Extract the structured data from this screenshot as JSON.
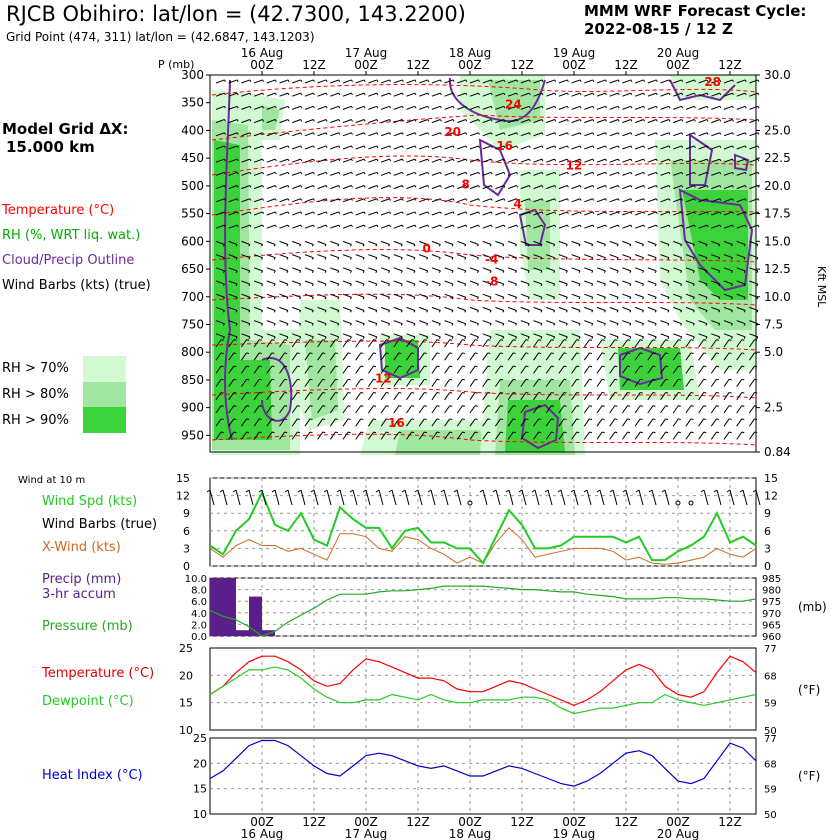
{
  "header": {
    "title": "RJCB Obihiro:  lat/lon = (42.7300, 143.2200)",
    "grid_point": "Grid Point (474, 311) lat/lon = (42.6847, 143.1203)",
    "cycle_title": "MMM WRF Forecast Cycle:",
    "cycle_value": "2022-08-15 / 12  Z",
    "model_grid_label": "Model Grid ΔX:",
    "model_grid_value": "15.000 km"
  },
  "legend": {
    "temperature": "Temperature (°C)",
    "rh": "RH (%, WRT liq. wat.)",
    "cloud": "Cloud/Precip Outline",
    "wind_barbs": "Wind Barbs (kts) (true)",
    "rh_levels": [
      "RH > 70%",
      "RH > 80%",
      "RH > 90%"
    ],
    "rh_colors": [
      "#d2fad2",
      "#a0e6a0",
      "#3cd23c"
    ]
  },
  "time_axis": {
    "hour_labels": [
      "00Z",
      "12Z",
      "00Z",
      "12Z",
      "00Z",
      "12Z",
      "00Z",
      "12Z",
      "00Z",
      "12Z"
    ],
    "hour_values": [
      12,
      24,
      36,
      48,
      60,
      72,
      84,
      96,
      108,
      120
    ],
    "day_labels": [
      "16 Aug",
      "17 Aug",
      "18 Aug",
      "19 Aug",
      "20 Aug"
    ],
    "day_values": [
      12,
      36,
      60,
      84,
      108
    ]
  },
  "colors": {
    "temperature": "#ff0000",
    "rh": "#00c000",
    "cloud": "#6a2a9a",
    "precip": "#5a1f8a",
    "wind_spd": "#22cc22",
    "x_wind": "#d2691e",
    "pressure": "#22aa22",
    "dewpoint": "#22cc22",
    "heat_index": "#0000cc"
  },
  "chart_data": [
    {
      "type": "heatmap",
      "name": "cross-section",
      "y_title": "P (mb)",
      "y_ticks": [
        300,
        350,
        400,
        450,
        500,
        550,
        600,
        650,
        700,
        750,
        800,
        850,
        900,
        950
      ],
      "right_ticks": [
        "30.0",
        "25.0",
        "22.5",
        "20.0",
        "17.5",
        "15.0",
        "12.5",
        "10.0",
        "7.5",
        "5.0",
        "2.5",
        "0.84"
      ],
      "right_tick_pressures": [
        300,
        400,
        450,
        500,
        550,
        600,
        650,
        700,
        750,
        800,
        900,
        980
      ],
      "right_label": "Kft MSL",
      "temp_labels": [
        {
          "text": "28",
          "x": 116,
          "p": 320
        },
        {
          "text": "24",
          "x": 70,
          "p": 360
        },
        {
          "text": "20",
          "x": 56,
          "p": 410
        },
        {
          "text": "16",
          "x": 68,
          "p": 435
        },
        {
          "text": "12",
          "x": 84,
          "p": 470
        },
        {
          "text": "8",
          "x": 59,
          "p": 505
        },
        {
          "text": "4",
          "x": 71,
          "p": 540
        },
        {
          "text": "0",
          "x": 50,
          "p": 620
        },
        {
          "text": "-4",
          "x": 65,
          "p": 640
        },
        {
          "text": "-8",
          "x": 65,
          "p": 680
        },
        {
          "text": "12",
          "x": 40,
          "p": 855
        },
        {
          "text": "16",
          "x": 43,
          "p": 935
        }
      ]
    },
    {
      "type": "line",
      "name": "wind-10m",
      "title": "Wind at 10 m",
      "ylim": [
        0,
        15
      ],
      "y_ticks": [
        0,
        3,
        6,
        9,
        12,
        15
      ],
      "series_labels": [
        "Wind Spd (kts)",
        "Wind Barbs (true)",
        "X-Wind (kts)"
      ],
      "x": [
        0,
        3,
        6,
        9,
        12,
        15,
        18,
        21,
        24,
        27,
        30,
        33,
        36,
        39,
        42,
        45,
        48,
        51,
        54,
        57,
        60,
        63,
        66,
        69,
        72,
        75,
        78,
        81,
        84,
        87,
        90,
        93,
        96,
        99,
        102,
        105,
        108,
        111,
        114,
        117,
        120,
        123,
        126
      ],
      "series": [
        {
          "name": "Wind Spd (kts)",
          "values": [
            3.5,
            2,
            6,
            8,
            12.5,
            7,
            6,
            9,
            4.5,
            3.5,
            10,
            8,
            6.5,
            6.5,
            3,
            6,
            6.5,
            4,
            4,
            3,
            3,
            0.5,
            5,
            9.5,
            7,
            3,
            3,
            3.5,
            5,
            5,
            5,
            5,
            4,
            5,
            1,
            1,
            2.5,
            3.5,
            5,
            9,
            4,
            5,
            3.5
          ]
        },
        {
          "name": "X-Wind (kts)",
          "values": [
            3,
            1.5,
            3.5,
            4.5,
            3.5,
            3.5,
            2.5,
            3,
            2,
            1,
            5.5,
            5.5,
            5,
            3,
            2.5,
            5,
            4.5,
            3,
            2,
            0.5,
            1.5,
            0.5,
            4,
            6.5,
            4.5,
            1.5,
            2,
            2.5,
            3,
            3,
            3,
            2.5,
            1,
            1.5,
            0.5,
            0.3,
            0.5,
            1,
            1.5,
            3,
            2,
            1.5,
            3
          ]
        }
      ]
    },
    {
      "type": "bar",
      "name": "precip-pressure",
      "series_labels": [
        "Precip (mm)",
        "3-hr accum",
        "Pressure (mb)"
      ],
      "left_ylim": [
        0,
        10
      ],
      "left_ticks": [
        "0.0",
        "2.0",
        "4.0",
        "6.0",
        "8.0",
        "10.0"
      ],
      "right_ylim": [
        960,
        985
      ],
      "right_ticks": [
        960,
        965,
        970,
        975,
        980,
        985
      ],
      "right_unit": "(mb)",
      "precip": {
        "x": [
          1.5,
          4.5,
          7.5,
          10.5,
          13.5
        ],
        "values": [
          10,
          10,
          1,
          6.8,
          1
        ]
      },
      "pressure": {
        "x": [
          0,
          3,
          6,
          9,
          12,
          15,
          18,
          21,
          24,
          27,
          30,
          33,
          36,
          39,
          42,
          45,
          48,
          51,
          54,
          57,
          60,
          63,
          66,
          69,
          72,
          75,
          78,
          81,
          84,
          87,
          90,
          93,
          96,
          99,
          102,
          105,
          108,
          111,
          114,
          117,
          120,
          123,
          126
        ],
        "values": [
          971,
          968.5,
          967,
          964,
          960,
          962,
          966,
          969,
          972,
          975.5,
          978,
          978,
          978,
          979,
          979.5,
          979.5,
          980,
          980.5,
          981.5,
          981.5,
          981.5,
          981.5,
          981,
          980.5,
          980,
          980,
          979.5,
          979,
          979,
          978,
          977.5,
          977,
          976,
          976,
          976,
          976.5,
          976.5,
          976,
          976,
          975.5,
          975,
          975,
          976
        ]
      }
    },
    {
      "type": "line",
      "name": "temperature-dewpoint",
      "series_labels": [
        "Temperature (°C)",
        "Dewpoint (°C)"
      ],
      "ylim": [
        10,
        25
      ],
      "y_ticks": [
        10,
        15,
        20,
        25
      ],
      "right_ticks": [
        50,
        59,
        68,
        77
      ],
      "right_unit": "(°F)",
      "x": [
        0,
        3,
        6,
        9,
        12,
        15,
        18,
        21,
        24,
        27,
        30,
        33,
        36,
        39,
        42,
        45,
        48,
        51,
        54,
        57,
        60,
        63,
        66,
        69,
        72,
        75,
        78,
        81,
        84,
        87,
        90,
        93,
        96,
        99,
        102,
        105,
        108,
        111,
        114,
        117,
        120,
        123,
        126
      ],
      "series": [
        {
          "name": "Temperature (°C)",
          "values": [
            16.5,
            18,
            20.5,
            22.5,
            23.5,
            23.5,
            22.5,
            21,
            19,
            18,
            18.5,
            21,
            23,
            22.5,
            21.5,
            20.5,
            19.5,
            19.5,
            19,
            17.5,
            17,
            17,
            18,
            19,
            18.5,
            17.5,
            16.5,
            15.5,
            14.5,
            15.5,
            17,
            19,
            21,
            22,
            21,
            18,
            16.5,
            16,
            17,
            20.5,
            23.5,
            22.5,
            20.5
          ]
        },
        {
          "name": "Dewpoint (°C)",
          "values": [
            16.5,
            18,
            19.5,
            21,
            21,
            21.5,
            21,
            19.5,
            17.5,
            16,
            15,
            15,
            15.5,
            15.5,
            16.5,
            16,
            15.5,
            16.5,
            15.5,
            15,
            15,
            15.5,
            15.5,
            15.5,
            16,
            16,
            15.5,
            14,
            13,
            13.5,
            14,
            14,
            14.5,
            15,
            15,
            16.5,
            15.5,
            15,
            14.5,
            15,
            15.5,
            16,
            16.5
          ]
        }
      ]
    },
    {
      "type": "line",
      "name": "heat-index",
      "series_labels": [
        "Heat Index (°C)"
      ],
      "ylim": [
        10,
        25
      ],
      "y_ticks": [
        10,
        15,
        20,
        25
      ],
      "right_ticks": [
        50,
        59,
        68,
        77
      ],
      "right_unit": "(°F)",
      "x": [
        0,
        3,
        6,
        9,
        12,
        15,
        18,
        21,
        24,
        27,
        30,
        33,
        36,
        39,
        42,
        45,
        48,
        51,
        54,
        57,
        60,
        63,
        66,
        69,
        72,
        75,
        78,
        81,
        84,
        87,
        90,
        93,
        96,
        99,
        102,
        105,
        108,
        111,
        114,
        117,
        120,
        123,
        126
      ],
      "series": [
        {
          "name": "Heat Index (°C)",
          "values": [
            17,
            18.5,
            21,
            23.5,
            24.5,
            24.5,
            23.5,
            21.5,
            19.5,
            18,
            17.5,
            19.5,
            21.5,
            22,
            21.5,
            20.5,
            19.5,
            19,
            19.5,
            18.5,
            17.5,
            17.5,
            18.5,
            19.5,
            19,
            18,
            17,
            16,
            15.5,
            16.5,
            18,
            20,
            22,
            22.5,
            21.5,
            19,
            16.5,
            16,
            17,
            20.5,
            24,
            23,
            20.5
          ]
        }
      ]
    }
  ]
}
